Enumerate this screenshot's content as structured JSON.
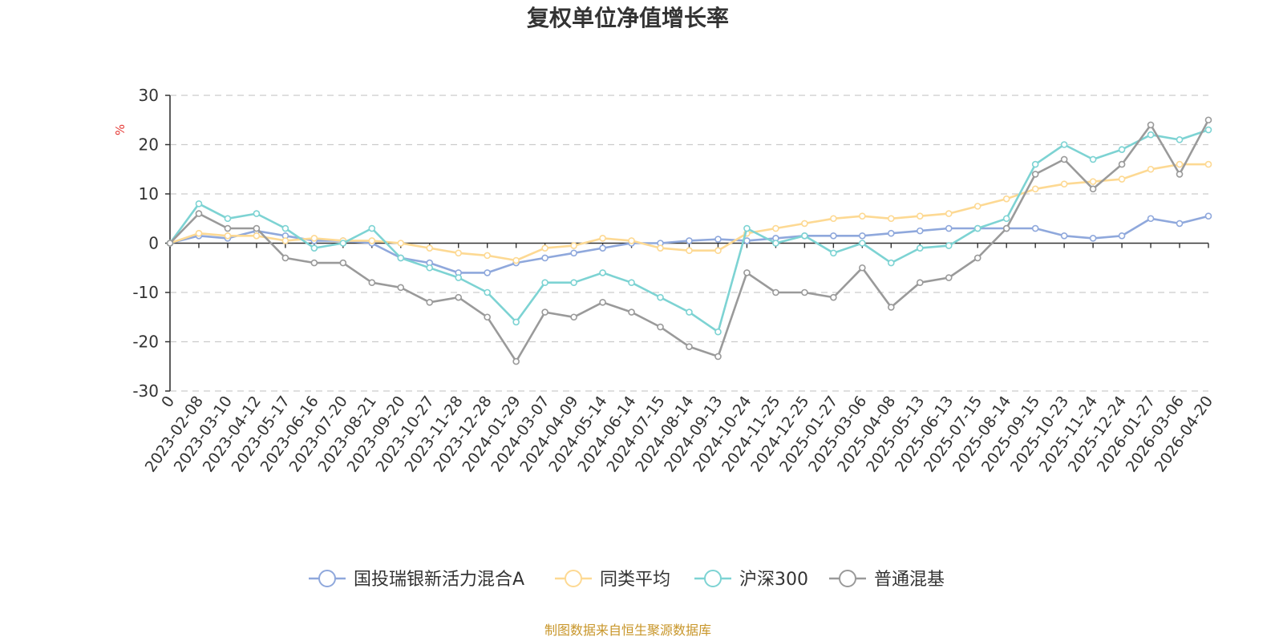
{
  "chart_data": {
    "type": "line",
    "title": "复权单位净值增长率",
    "ylabel": "%",
    "ylim": [
      -30,
      30
    ],
    "yticks": [
      30,
      20,
      10,
      0,
      -10,
      -20,
      -30
    ],
    "grid": true,
    "legend_position": "bottom",
    "source": "制图数据来自恒生聚源数据库",
    "x": [
      "0",
      "2023-02-08",
      "2023-03-10",
      "2023-04-12",
      "2023-05-17",
      "2023-06-16",
      "2023-07-20",
      "2023-08-21",
      "2023-09-20",
      "2023-10-27",
      "2023-11-28",
      "2023-12-28",
      "2024-01-29",
      "2024-03-07",
      "2024-04-09",
      "2024-05-14",
      "2024-06-14",
      "2024-07-15",
      "2024-08-14",
      "2024-09-13",
      "2024-10-24",
      "2024-11-25",
      "2024-12-25",
      "2025-01-27",
      "2025-03-06",
      "2025-04-08",
      "2025-05-13",
      "2025-06-13",
      "2025-07-15",
      "2025-08-14",
      "2025-09-15",
      "2025-10-23",
      "2025-11-24",
      "2025-12-24",
      "2026-01-27",
      "2026-03-06",
      "2026-04-20"
    ],
    "series": [
      {
        "name": "国投瑞银新活力混合A",
        "color": "#8fa8dc",
        "values": [
          0,
          1.5,
          1.0,
          2.5,
          1.5,
          0.5,
          0.5,
          0,
          -3,
          -4,
          -6,
          -6,
          -4,
          -3,
          -2,
          -1,
          0,
          0,
          0.5,
          0.8,
          0.5,
          1,
          1.5,
          1.5,
          1.5,
          2,
          2.5,
          3,
          3,
          3,
          3,
          1.5,
          1,
          1.5,
          5,
          4,
          5.5
        ]
      },
      {
        "name": "同类平均",
        "color": "#fdd993",
        "values": [
          0,
          2,
          1.5,
          1.5,
          0.5,
          1,
          0.5,
          0.5,
          0,
          -1,
          -2,
          -2.5,
          -3.5,
          -1,
          -0.5,
          1,
          0.5,
          -1,
          -1.5,
          -1.5,
          2,
          3,
          4,
          5,
          5.5,
          5,
          5.5,
          6,
          7.5,
          9,
          11,
          12,
          12.5,
          13,
          15,
          16,
          16
        ]
      },
      {
        "name": "沪深300",
        "color": "#7dd3d3",
        "values": [
          0,
          8,
          5,
          6,
          3,
          -1,
          0,
          3,
          -3,
          -5,
          -7,
          -10,
          -16,
          -8,
          -8,
          -6,
          -8,
          -11,
          -14,
          -18,
          3,
          0,
          1.5,
          -2,
          0,
          -4,
          -1,
          -0.5,
          3,
          5,
          16,
          20,
          17,
          19,
          22,
          21,
          23
        ]
      },
      {
        "name": "普通混基",
        "color": "#9a9a9a",
        "values": [
          0,
          6,
          3,
          3,
          -3,
          -4,
          -4,
          -8,
          -9,
          -12,
          -11,
          -15,
          -24,
          -14,
          -15,
          -12,
          -14,
          -17,
          -21,
          -23,
          -6,
          -10,
          -10,
          -11,
          -5,
          -13,
          -8,
          -7,
          -3,
          3,
          14,
          17,
          11,
          16,
          24,
          14,
          25
        ]
      }
    ]
  }
}
